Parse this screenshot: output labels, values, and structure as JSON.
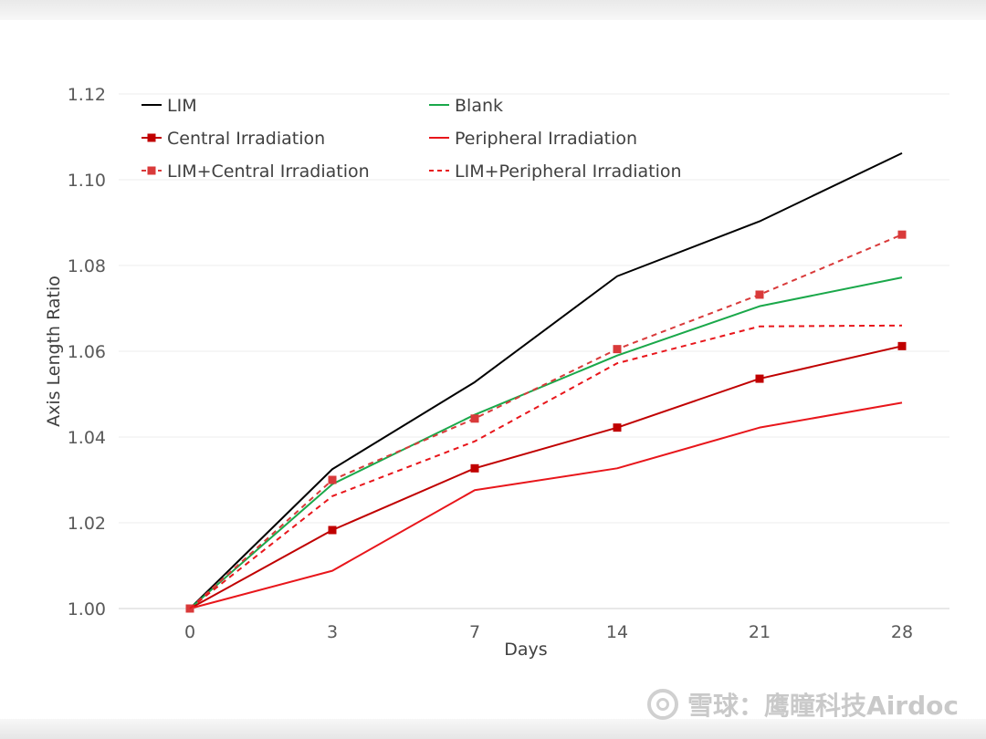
{
  "chart_data": {
    "type": "line",
    "title": "",
    "xlabel": "Days",
    "ylabel": "Axis Length Ratio",
    "categories": [
      "0",
      "3",
      "7",
      "14",
      "21",
      "28"
    ],
    "ylim": [
      1.0,
      1.12
    ],
    "yticks": [
      "1.00",
      "1.02",
      "1.04",
      "1.06",
      "1.08",
      "1.10",
      "1.12"
    ],
    "grid": true,
    "legend_position": "top-left",
    "series": [
      {
        "name": "LIM",
        "color": "#000000",
        "dash": "solid",
        "marker": "none",
        "values": [
          1.0,
          1.0325,
          1.0528,
          1.0775,
          1.0903,
          1.1062
        ]
      },
      {
        "name": "Blank",
        "color": "#1aa84a",
        "dash": "solid",
        "marker": "none",
        "values": [
          1.0,
          1.029,
          1.0452,
          1.059,
          1.0705,
          1.0772
        ]
      },
      {
        "name": "Central Irradiation",
        "color": "#c00000",
        "dash": "solid",
        "marker": "square",
        "values": [
          1.0,
          1.0183,
          1.0327,
          1.0422,
          1.0536,
          1.0612
        ]
      },
      {
        "name": "Peripheral Irradiation",
        "color": "#e8161b",
        "dash": "solid",
        "marker": "none",
        "values": [
          1.0,
          1.0088,
          1.0276,
          1.0327,
          1.0422,
          1.048
        ]
      },
      {
        "name": "LIM+Central Irradiation",
        "color": "#d93a3a",
        "dash": "dashed",
        "marker": "square",
        "values": [
          1.0,
          1.03,
          1.0443,
          1.0605,
          1.0732,
          1.0872
        ]
      },
      {
        "name": "LIM+Peripheral Irradiation",
        "color": "#e8161b",
        "dash": "dashed",
        "marker": "none",
        "values": [
          1.0,
          1.0262,
          1.039,
          1.0572,
          1.0658,
          1.066
        ]
      }
    ]
  },
  "watermark": {
    "text": "雪球：鹰瞳科技Airdoc"
  }
}
